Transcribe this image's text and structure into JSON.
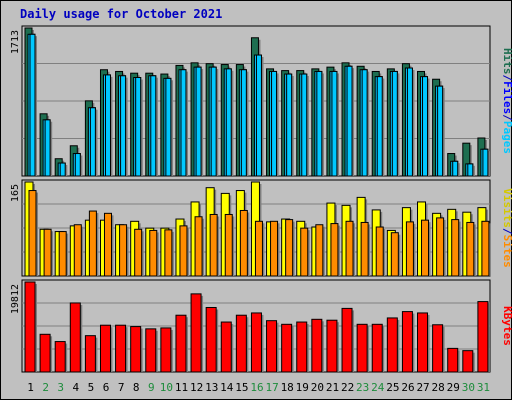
{
  "title": "Daily usage for October 2021",
  "colors": {
    "hits": "#1e6e50",
    "files": "#00c8ff",
    "pages": "#00c8ff",
    "visits": "#ffff00",
    "sites": "#ff8c00",
    "kbytes": "#ff0000",
    "title_text": "#0000c0",
    "weekend_label": "#1e8c3c",
    "weekday_label": "#000000",
    "panel_bg": "#c0c0c0"
  },
  "chart_data": [
    {
      "type": "bar",
      "name": "hits-files-pages",
      "categories": [
        "1",
        "2",
        "3",
        "4",
        "5",
        "6",
        "7",
        "8",
        "9",
        "10",
        "11",
        "12",
        "13",
        "14",
        "15",
        "16",
        "17",
        "18",
        "19",
        "20",
        "21",
        "22",
        "23",
        "24",
        "25",
        "26",
        "27",
        "28",
        "29",
        "30",
        "31"
      ],
      "weekend_days": [
        "2",
        "3",
        "9",
        "10",
        "16",
        "17",
        "23",
        "24",
        "30",
        "31"
      ],
      "ymax_label": "1713",
      "ylim": [
        0,
        1713
      ],
      "ylabel_parts": [
        {
          "text": "Hits",
          "color": "#1e6e50"
        },
        {
          "text": "/",
          "color": "#0000c0"
        },
        {
          "text": "Files",
          "color": "#0000ff"
        },
        {
          "text": "/",
          "color": "#0000c0"
        },
        {
          "text": "Pages",
          "color": "#00c8ff"
        }
      ],
      "series": [
        {
          "name": "Hits",
          "values": [
            1713,
            720,
            200,
            350,
            870,
            1230,
            1210,
            1190,
            1190,
            1180,
            1280,
            1310,
            1300,
            1290,
            1290,
            1600,
            1240,
            1220,
            1220,
            1240,
            1260,
            1310,
            1270,
            1210,
            1240,
            1300,
            1210,
            1120,
            260,
            380,
            440
          ]
        },
        {
          "name": "Files",
          "values": [
            1640,
            650,
            150,
            260,
            790,
            1170,
            1160,
            1140,
            1160,
            1130,
            1230,
            1260,
            1260,
            1240,
            1230,
            1400,
            1210,
            1180,
            1180,
            1210,
            1210,
            1270,
            1230,
            1150,
            1210,
            1250,
            1150,
            1040,
            170,
            140,
            310
          ]
        },
        {
          "name": "Pages",
          "values": [
            1640,
            650,
            150,
            260,
            790,
            1170,
            1160,
            1140,
            1160,
            1130,
            1230,
            1260,
            1260,
            1240,
            1230,
            1400,
            1210,
            1180,
            1180,
            1210,
            1210,
            1270,
            1230,
            1150,
            1210,
            1250,
            1150,
            1040,
            170,
            140,
            310
          ]
        }
      ]
    },
    {
      "type": "bar",
      "name": "visits-sites",
      "categories": [
        "1",
        "2",
        "3",
        "4",
        "5",
        "6",
        "7",
        "8",
        "9",
        "10",
        "11",
        "12",
        "13",
        "14",
        "15",
        "16",
        "17",
        "18",
        "19",
        "20",
        "21",
        "22",
        "23",
        "24",
        "25",
        "26",
        "27",
        "28",
        "29",
        "30",
        "31"
      ],
      "ymax_label": "165",
      "ylim": [
        0,
        165
      ],
      "ylabel_parts": [
        {
          "text": "Visits",
          "color": "#d4c800"
        },
        {
          "text": "/",
          "color": "#0000c0"
        },
        {
          "text": "Sites",
          "color": "#ff8c00"
        }
      ],
      "series": [
        {
          "name": "Visits",
          "values": [
            165,
            82,
            78,
            88,
            98,
            98,
            90,
            96,
            84,
            84,
            100,
            130,
            155,
            145,
            150,
            165,
            95,
            100,
            96,
            86,
            128,
            124,
            138,
            116,
            80,
            120,
            130,
            110,
            117,
            112,
            120
          ]
        },
        {
          "name": "Sites",
          "values": [
            150,
            82,
            78,
            90,
            114,
            110,
            90,
            82,
            80,
            81,
            88,
            104,
            108,
            108,
            115,
            96,
            96,
            99,
            84,
            90,
            92,
            96,
            94,
            86,
            76,
            95,
            98,
            102,
            99,
            94,
            96
          ]
        }
      ]
    },
    {
      "type": "bar",
      "name": "kbytes",
      "categories": [
        "1",
        "2",
        "3",
        "4",
        "5",
        "6",
        "7",
        "8",
        "9",
        "10",
        "11",
        "12",
        "13",
        "14",
        "15",
        "16",
        "17",
        "18",
        "19",
        "20",
        "21",
        "22",
        "23",
        "24",
        "25",
        "26",
        "27",
        "28",
        "29",
        "30",
        "31"
      ],
      "ymax_label": "19812",
      "ylim": [
        0,
        19812
      ],
      "ylabel_parts": [
        {
          "text": "KBytes",
          "color": "#ff0000"
        }
      ],
      "series": [
        {
          "name": "KBytes",
          "values": [
            19812,
            8300,
            6700,
            15200,
            8000,
            10300,
            10300,
            10000,
            9500,
            9700,
            12500,
            17200,
            14200,
            11000,
            12500,
            13000,
            11300,
            10500,
            11000,
            11600,
            11400,
            14000,
            10500,
            10500,
            11900,
            13300,
            13000,
            10400,
            5200,
            4700,
            15500
          ]
        }
      ]
    }
  ]
}
